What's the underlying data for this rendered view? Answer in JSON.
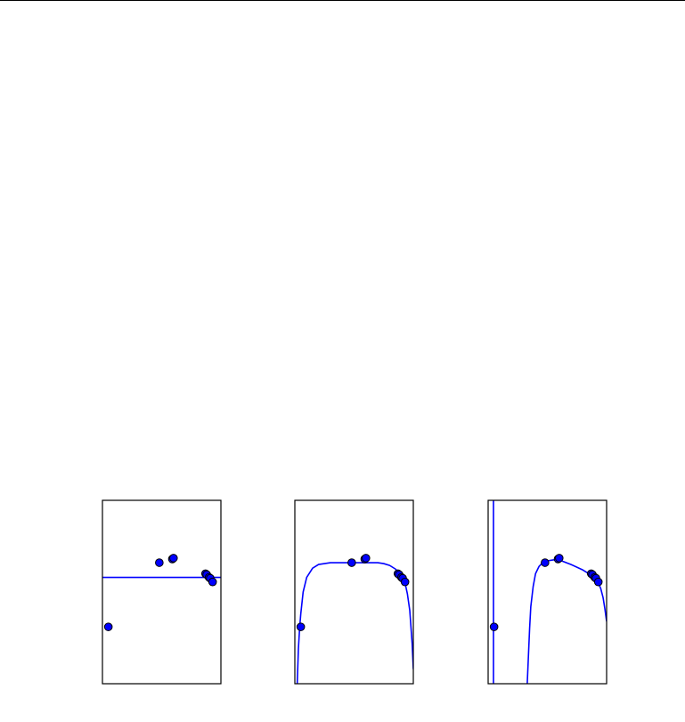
{
  "colors": {
    "curve": "#0000ff",
    "marker_fill": "#0000ff",
    "marker_edge": "#000000",
    "frame": "#000000",
    "rule": "#000000"
  },
  "chart_data": [
    {
      "type": "scatter",
      "title": "",
      "xlabel": "",
      "ylabel": "",
      "xlim": [
        0,
        1
      ],
      "ylim": [
        0,
        1
      ],
      "grid": false,
      "points": [
        {
          "x": 0.05,
          "y": 0.31
        },
        {
          "x": 0.48,
          "y": 0.66
        },
        {
          "x": 0.59,
          "y": 0.68
        },
        {
          "x": 0.6,
          "y": 0.685
        },
        {
          "x": 0.87,
          "y": 0.6
        },
        {
          "x": 0.88,
          "y": 0.595
        },
        {
          "x": 0.9,
          "y": 0.58
        },
        {
          "x": 0.91,
          "y": 0.575
        },
        {
          "x": 0.93,
          "y": 0.555
        }
      ],
      "curve": {
        "x": [
          0,
          1
        ],
        "y": [
          0.58,
          0.58
        ]
      }
    },
    {
      "type": "scatter",
      "title": "",
      "xlabel": "",
      "ylabel": "",
      "xlim": [
        0,
        1
      ],
      "ylim": [
        0,
        1
      ],
      "grid": false,
      "points": [
        {
          "x": 0.05,
          "y": 0.31
        },
        {
          "x": 0.48,
          "y": 0.66
        },
        {
          "x": 0.59,
          "y": 0.68
        },
        {
          "x": 0.6,
          "y": 0.685
        },
        {
          "x": 0.87,
          "y": 0.6
        },
        {
          "x": 0.88,
          "y": 0.595
        },
        {
          "x": 0.9,
          "y": 0.58
        },
        {
          "x": 0.91,
          "y": 0.575
        },
        {
          "x": 0.93,
          "y": 0.555
        }
      ],
      "curve": {
        "x": [
          0.02,
          0.03,
          0.04,
          0.05,
          0.07,
          0.1,
          0.15,
          0.2,
          0.3,
          0.4,
          0.5,
          0.6,
          0.7,
          0.75,
          0.8,
          0.85,
          0.88,
          0.9,
          0.93,
          0.95,
          0.97,
          0.99,
          1.0
        ],
        "y": [
          0.0,
          0.19,
          0.3,
          0.38,
          0.5,
          0.58,
          0.63,
          0.65,
          0.66,
          0.66,
          0.66,
          0.66,
          0.66,
          0.655,
          0.645,
          0.625,
          0.605,
          0.585,
          0.55,
          0.49,
          0.4,
          0.22,
          0.08
        ]
      }
    },
    {
      "type": "scatter",
      "title": "",
      "xlabel": "",
      "ylabel": "",
      "xlim": [
        0,
        1
      ],
      "ylim": [
        0,
        1
      ],
      "grid": false,
      "points": [
        {
          "x": 0.05,
          "y": 0.31
        },
        {
          "x": 0.48,
          "y": 0.66
        },
        {
          "x": 0.59,
          "y": 0.68
        },
        {
          "x": 0.6,
          "y": 0.685
        },
        {
          "x": 0.87,
          "y": 0.6
        },
        {
          "x": 0.88,
          "y": 0.595
        },
        {
          "x": 0.9,
          "y": 0.58
        },
        {
          "x": 0.91,
          "y": 0.575
        },
        {
          "x": 0.93,
          "y": 0.555
        }
      ],
      "vertical_line_x": 0.045,
      "curve": {
        "x": [
          0.33,
          0.34,
          0.35,
          0.36,
          0.38,
          0.4,
          0.43,
          0.46,
          0.5,
          0.55,
          0.6,
          0.7,
          0.8,
          0.85,
          0.88,
          0.91,
          0.93,
          0.95,
          0.97,
          0.985,
          1.0
        ],
        "y": [
          0.0,
          0.15,
          0.3,
          0.42,
          0.53,
          0.6,
          0.64,
          0.66,
          0.67,
          0.675,
          0.675,
          0.65,
          0.62,
          0.6,
          0.59,
          0.57,
          0.55,
          0.52,
          0.47,
          0.41,
          0.34
        ]
      }
    }
  ]
}
